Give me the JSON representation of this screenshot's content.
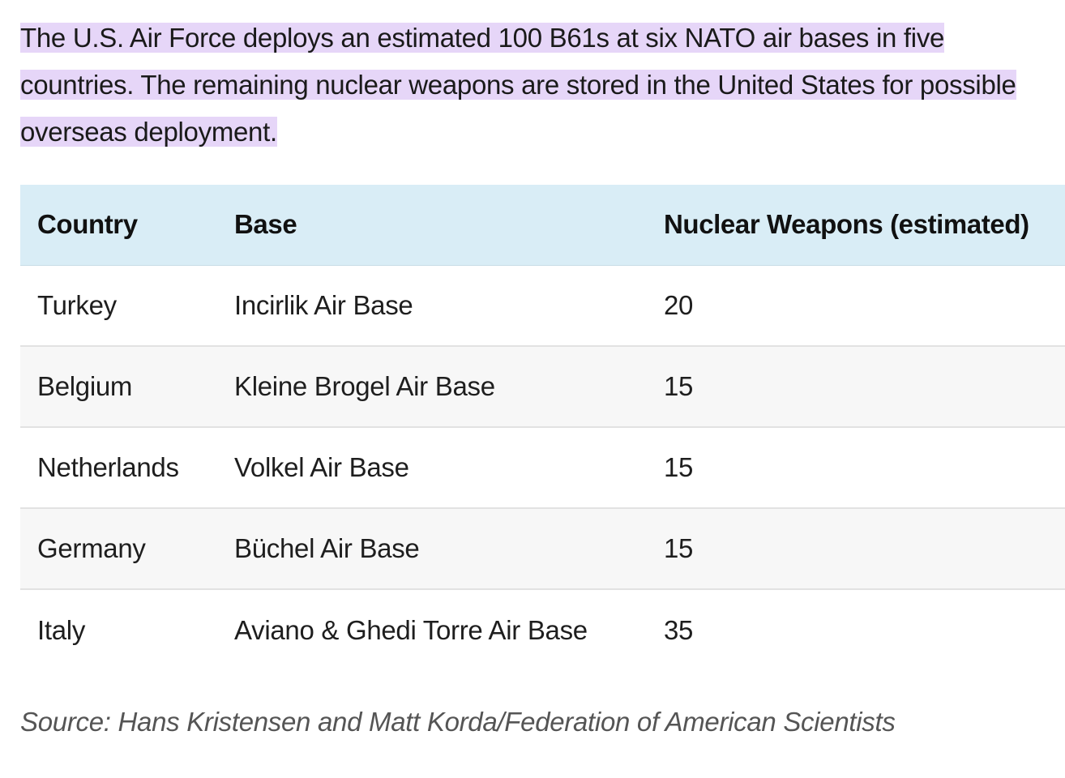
{
  "intro": {
    "text": "The U.S. Air Force deploys an estimated 100 B61s at six NATO air bases in five countries. The remaining nuclear weapons are stored in the United States for possible overseas deployment."
  },
  "table": {
    "headers": [
      "Country",
      "Base",
      "Nuclear Weapons (estimated)"
    ],
    "rows": [
      [
        "Turkey",
        "Incirlik Air Base",
        "20"
      ],
      [
        "Belgium",
        "Kleine Brogel Air Base",
        "15"
      ],
      [
        "Netherlands",
        "Volkel Air Base",
        "15"
      ],
      [
        "Germany",
        "Büchel Air Base",
        "15"
      ],
      [
        "Italy",
        "Aviano & Ghedi Torre Air Base",
        "35"
      ]
    ]
  },
  "source": {
    "text": "Source: Hans Kristensen and Matt Korda/Federation of American Scientists"
  },
  "colors": {
    "highlight": "#e6d6f8",
    "header_background": "#d9edf6",
    "striped_row": "#f7f7f7"
  }
}
